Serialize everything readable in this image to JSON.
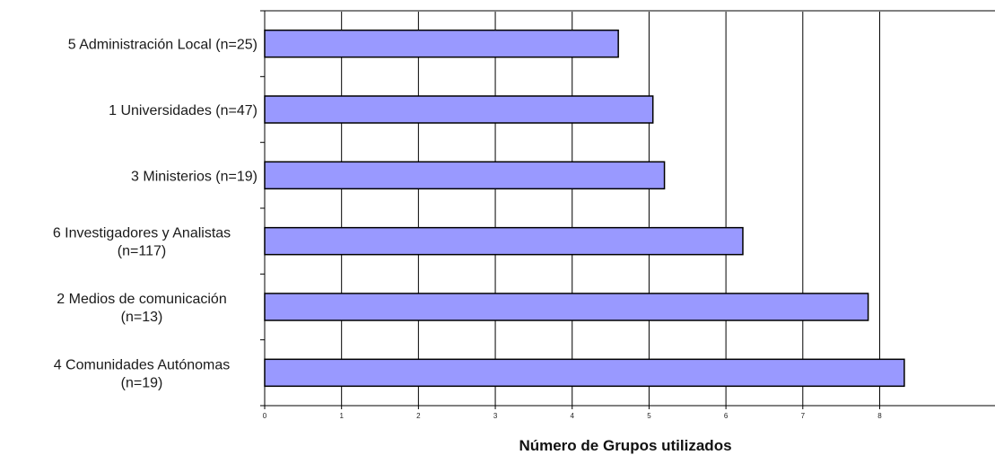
{
  "chart_data": {
    "type": "bar",
    "orientation": "horizontal",
    "categories": [
      [
        "5 Administración Local  (n=25)"
      ],
      [
        "1 Universidades  (n=47)"
      ],
      [
        "3 Ministerios  (n=19)"
      ],
      [
        "6 Investigadores y Analistas",
        "(n=117)"
      ],
      [
        "2 Medios de comunicación",
        "(n=13)"
      ],
      [
        "4 Comunidades Autónomas",
        "(n=19)"
      ]
    ],
    "values": [
      4.6,
      5.05,
      5.2,
      6.22,
      7.85,
      8.32
    ],
    "xlabel": "Número de Grupos utilizados",
    "ylabel": "",
    "xlim": [
      0,
      9.5
    ],
    "xticks": [
      0,
      1,
      2,
      3,
      4,
      5,
      6,
      7,
      8
    ],
    "grid": true,
    "colors": {
      "bar_fill": "#9999ff",
      "bar_stroke": "#000000",
      "grid": "#000000",
      "top_axis": "#808080"
    }
  }
}
